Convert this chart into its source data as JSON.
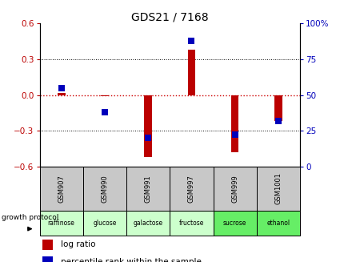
{
  "title": "GDS21 / 7168",
  "samples": [
    "GSM907",
    "GSM990",
    "GSM991",
    "GSM997",
    "GSM999",
    "GSM1001"
  ],
  "protocols": [
    "raffinose",
    "glucose",
    "galactose",
    "fructose",
    "sucrose",
    "ethanol"
  ],
  "log_ratios": [
    0.02,
    -0.01,
    -0.52,
    0.38,
    -0.48,
    -0.22
  ],
  "percentile_ranks": [
    55,
    38,
    20,
    88,
    22,
    32
  ],
  "ylim_left": [
    -0.6,
    0.6
  ],
  "ylim_right": [
    0,
    100
  ],
  "yticks_left": [
    -0.6,
    -0.3,
    0.0,
    0.3,
    0.6
  ],
  "yticks_right": [
    0,
    25,
    50,
    75,
    100
  ],
  "bar_color": "#bb0000",
  "dot_color": "#0000bb",
  "zero_line_color": "#cc0000",
  "sample_bg": "#c8c8c8",
  "protocol_colors": [
    "#ccffcc",
    "#ccffcc",
    "#ccffcc",
    "#ccffcc",
    "#66ee66",
    "#66ee66"
  ],
  "bar_width": 0.18,
  "dot_size": 28,
  "legend_log_ratio": "log ratio",
  "legend_percentile": "percentile rank within the sample",
  "growth_protocol_label": "growth protocol"
}
